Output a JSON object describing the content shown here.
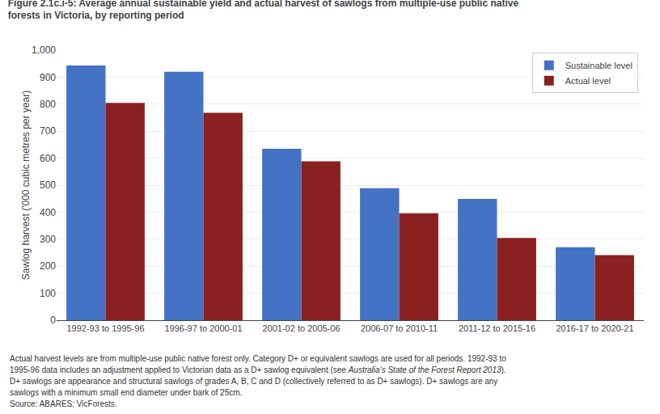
{
  "chart_data": {
    "type": "bar",
    "title": [
      "Figure 2.1c.i-5: Average annual sustainable yield and actual harvest of sawlogs from multiple-use public native",
      "forests in Victoria, by reporting period"
    ],
    "categories": [
      "1992-93 to 1995-96",
      "1996-97 to 2000-01",
      "2001-02 to 2005-06",
      "2006-07 to 2010-11",
      "2011-12 to 2015-16",
      "2016-17 to 2020-21"
    ],
    "series": [
      {
        "name": "Sustainable level",
        "color": "#4472C4",
        "values": [
          943,
          920,
          635,
          489,
          449,
          270
        ]
      },
      {
        "name": "Actual level",
        "color": "#8B2020",
        "values": [
          805,
          768,
          588,
          396,
          305,
          241
        ]
      }
    ],
    "ylabel": "Sawlog harvest ('000 cubic metres per year)",
    "ylim": [
      0,
      1000
    ],
    "yticks": [
      0,
      100,
      200,
      300,
      400,
      500,
      600,
      700,
      800,
      900,
      {
        "value": 1000,
        "label": "1,000"
      }
    ],
    "grid": true,
    "legend": "upper right",
    "annotations": [
      "Actual harvest levels are from multiple-use public native forest only. Category D+ or equivalent sawlogs are used for all periods. 1992-93 to",
      [
        "1995-96 data includes an adjustment applied to Victorian data as a D+ sawlog equivalent (see ",
        "Australia’s State of the Forest Report 2013",
        ")."
      ],
      "D+ sawlogs are appearance and structural sawlogs of grades A, B, C and D (collectively referred to as D+ sawlogs). D+ sawlogs are any",
      "sawlogs with a minimum small end diameter under bark of 25cm.",
      "Source: ABARES; VicForests."
    ]
  }
}
